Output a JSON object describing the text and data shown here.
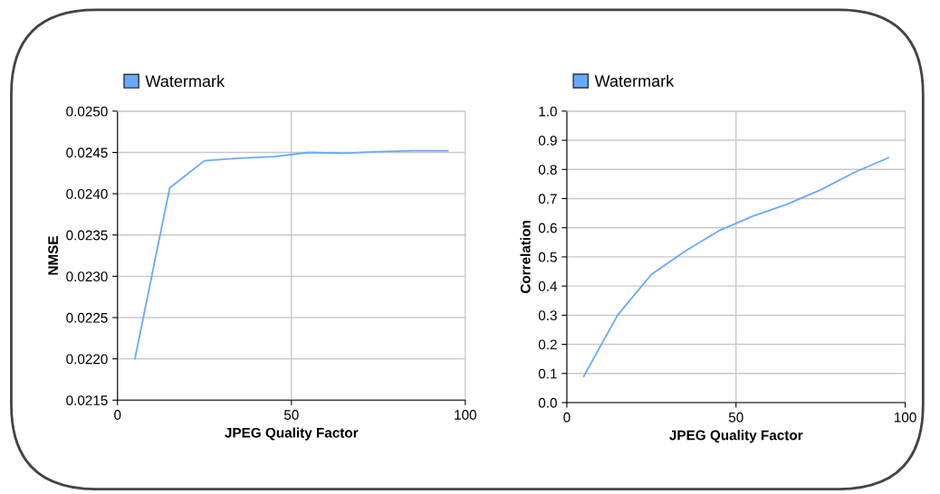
{
  "chart_data": [
    {
      "type": "line",
      "xlabel": "JPEG Quality Factor",
      "ylabel": "NMSE",
      "x": [
        5,
        15,
        25,
        35,
        45,
        55,
        65,
        75,
        85,
        95
      ],
      "series": [
        {
          "name": "Watermark",
          "color": "#66aaff",
          "values": [
            0.022,
            0.02407,
            0.0244,
            0.02443,
            0.02445,
            0.0245,
            0.02449,
            0.02451,
            0.02452,
            0.02452
          ]
        }
      ],
      "xlim": [
        0,
        100
      ],
      "xticks": [
        0,
        50,
        100
      ],
      "ylim": [
        0.0215,
        0.025
      ],
      "yticks": [
        {
          "value": 0.0215,
          "label": "0.0215"
        },
        {
          "value": 0.022,
          "label": "0.0220"
        },
        {
          "value": 0.0225,
          "label": "0.0225"
        },
        {
          "value": 0.023,
          "label": "0.0230"
        },
        {
          "value": 0.0235,
          "label": "0.0235"
        },
        {
          "value": 0.024,
          "label": "0.0240"
        },
        {
          "value": 0.0245,
          "label": "0.0245"
        },
        {
          "value": 0.025,
          "label": "0.0250"
        }
      ],
      "grid": true,
      "legend": "top left"
    },
    {
      "type": "line",
      "xlabel": "JPEG Quality Factor",
      "ylabel": "Correlation",
      "x": [
        5,
        15,
        25,
        35,
        45,
        55,
        65,
        75,
        85,
        95
      ],
      "series": [
        {
          "name": "Watermark",
          "color": "#66aaff",
          "values": [
            0.09,
            0.3,
            0.44,
            0.52,
            0.59,
            0.64,
            0.68,
            0.73,
            0.79,
            0.84
          ]
        }
      ],
      "xlim": [
        0,
        100
      ],
      "xticks": [
        0,
        50,
        100
      ],
      "ylim": [
        0,
        1
      ],
      "yticks": [
        {
          "value": 0,
          "label": "0.0"
        },
        {
          "value": 0.1,
          "label": "0.1"
        },
        {
          "value": 0.2,
          "label": "0.2"
        },
        {
          "value": 0.3,
          "label": "0.3"
        },
        {
          "value": 0.4,
          "label": "0.4"
        },
        {
          "value": 0.5,
          "label": "0.5"
        },
        {
          "value": 0.6,
          "label": "0.6"
        },
        {
          "value": 0.7,
          "label": "0.7"
        },
        {
          "value": 0.8,
          "label": "0.8"
        },
        {
          "value": 0.9,
          "label": "0.9"
        },
        {
          "value": 1,
          "label": "1.0"
        }
      ],
      "grid": true,
      "legend": "top left"
    }
  ]
}
